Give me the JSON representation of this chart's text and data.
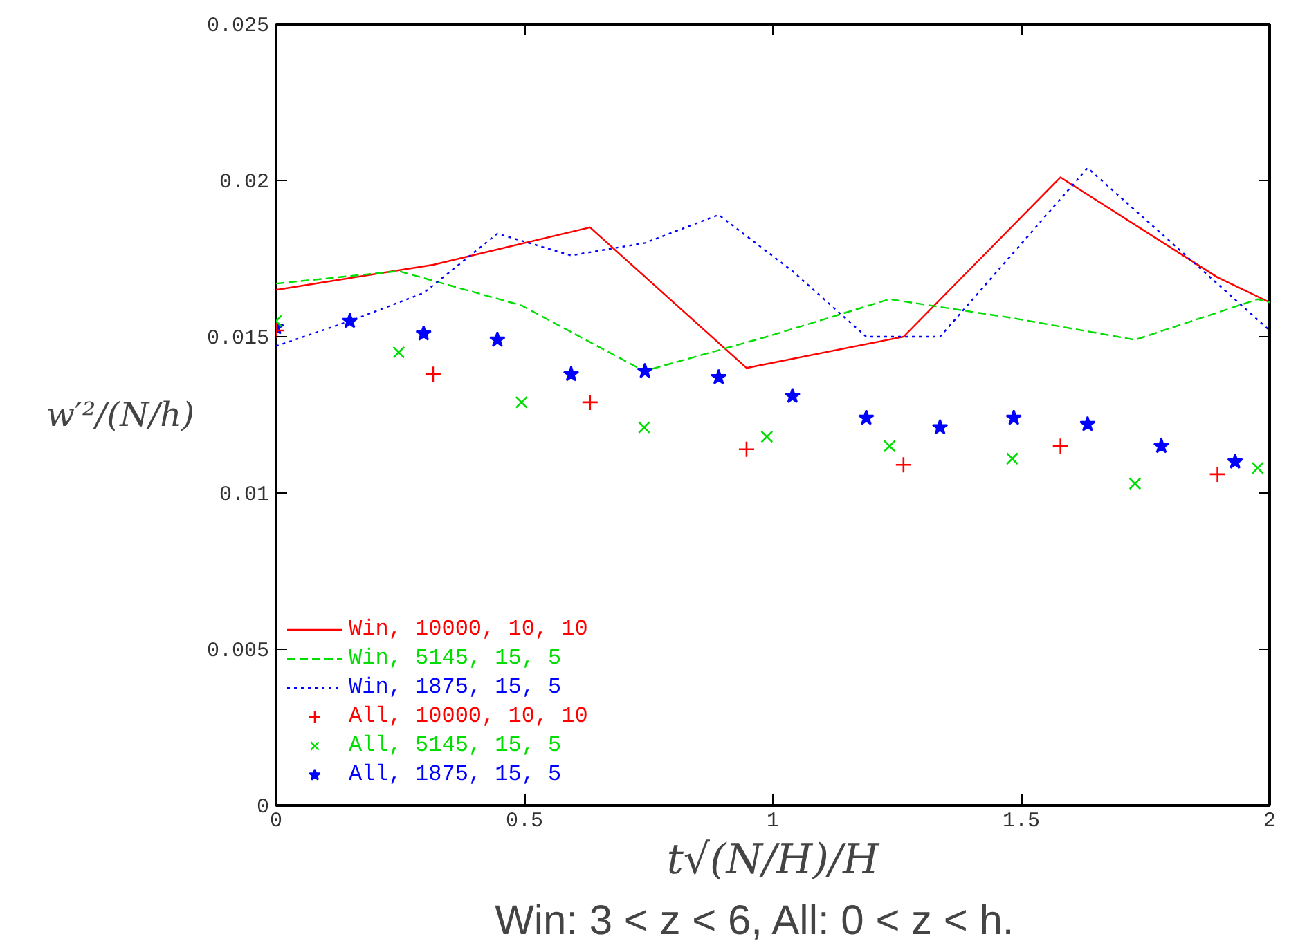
{
  "chart_data": {
    "type": "line",
    "xlabel": "t√(N/H)/H",
    "ylabel": "w′²/(N/h)",
    "annotations": [
      "Win: 3 < z < 6,    All: 0 < z < h."
    ],
    "xlim": [
      0,
      2
    ],
    "ylim": [
      0,
      0.025
    ],
    "xticks": [
      0,
      0.5,
      1,
      1.5,
      2
    ],
    "yticks": [
      0,
      0.005,
      0.01,
      0.015,
      0.02,
      0.025
    ],
    "grid": false,
    "legend": "bottom left",
    "series": [
      {
        "name": "Win, 10000, 10, 10",
        "color": "#ff0000",
        "line_style": "solid",
        "x": [
          0,
          0.316,
          0.632,
          0.947,
          1.263,
          1.579,
          1.895,
          2.0
        ],
        "values": [
          0.0165,
          0.0173,
          0.0185,
          0.014,
          0.015,
          0.0201,
          0.0169,
          0.0161
        ]
      },
      {
        "name": "Win, 5145, 15, 5",
        "color": "#00dd00",
        "line_style": "dashed",
        "x": [
          0,
          0.247,
          0.494,
          0.741,
          0.988,
          1.235,
          1.482,
          1.729,
          1.976,
          2.0
        ],
        "values": [
          0.0167,
          0.0171,
          0.016,
          0.0139,
          0.015,
          0.0162,
          0.0156,
          0.0149,
          0.0162,
          0.0161
        ]
      },
      {
        "name": "Win, 1875, 15, 5",
        "color": "#0000ff",
        "line_style": "dotted",
        "x": [
          0,
          0.1485,
          0.297,
          0.4455,
          0.594,
          0.7425,
          0.891,
          1.0395,
          1.188,
          1.3365,
          1.485,
          1.6335,
          1.782,
          2.0
        ],
        "values": [
          0.0147,
          0.0155,
          0.0164,
          0.0183,
          0.0176,
          0.018,
          0.0189,
          0.0171,
          0.015,
          0.015,
          0.0177,
          0.0204,
          0.0183,
          0.0152
        ]
      },
      {
        "name": "All, 10000, 10, 10",
        "color": "#ff0000",
        "type": "scatter",
        "marker": "cross",
        "x": [
          0,
          0.316,
          0.632,
          0.947,
          1.263,
          1.579,
          1.895
        ],
        "values": [
          0.0152,
          0.0138,
          0.0129,
          0.0114,
          0.0109,
          0.0115,
          0.0106
        ]
      },
      {
        "name": "All, 5145, 15, 5",
        "color": "#00dd00",
        "type": "scatter",
        "marker": "x",
        "x": [
          0,
          0.247,
          0.494,
          0.741,
          0.988,
          1.235,
          1.482,
          1.729,
          1.976
        ],
        "values": [
          0.0155,
          0.0145,
          0.0129,
          0.0121,
          0.0118,
          0.0115,
          0.0111,
          0.0103,
          0.0108
        ]
      },
      {
        "name": "All, 1875, 15, 5",
        "color": "#0000ff",
        "type": "scatter",
        "marker": "star",
        "x": [
          0,
          0.1485,
          0.297,
          0.4455,
          0.594,
          0.7425,
          0.891,
          1.0395,
          1.188,
          1.3365,
          1.485,
          1.6335,
          1.782,
          1.9305
        ],
        "values": [
          0.0153,
          0.0155,
          0.0151,
          0.0149,
          0.0138,
          0.0139,
          0.0137,
          0.0131,
          0.0124,
          0.0121,
          0.0124,
          0.0122,
          0.0115,
          0.011
        ]
      }
    ]
  }
}
